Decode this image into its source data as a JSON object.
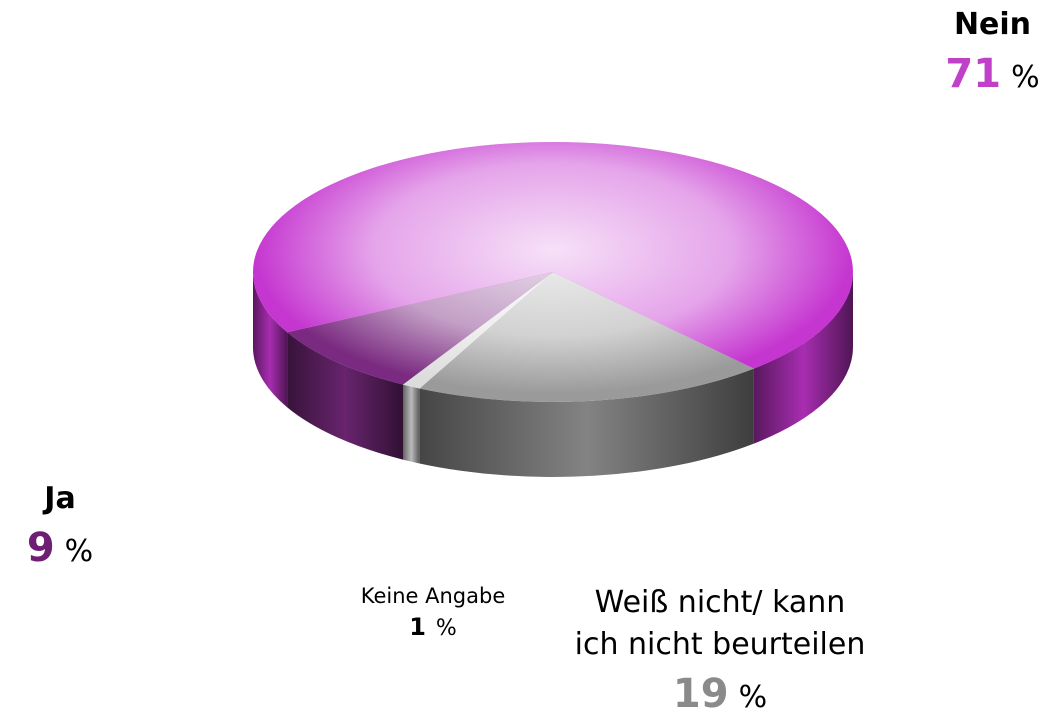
{
  "chart_data": {
    "type": "pie3d",
    "categories": [
      "Weiß nicht/ kann\nich nicht beurteilen",
      "Keine Angabe",
      "Ja",
      "Nein"
    ],
    "values": [
      19,
      1,
      9,
      71
    ],
    "colors": [
      "#9a9a9a",
      "#dcdcdc",
      "#7a2a80",
      "#c535d0"
    ],
    "label_colors": [
      "#8a8a8a",
      "#000000",
      "#6e1f73",
      "#c040c8"
    ],
    "unit": "%"
  }
}
